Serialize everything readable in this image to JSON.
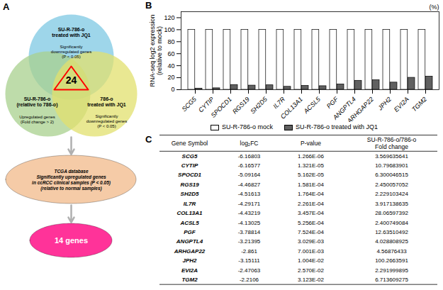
{
  "chart_data": [
    {
      "type": "venn",
      "title": "A",
      "sets": [
        {
          "name": "SU-R-786-o\ntreated with JQ1",
          "label": "Significantly\ndownregulated genes\n(P < 0.05)",
          "color": "#7ec8e3"
        },
        {
          "name": "SU-R-786-o\n(relative to 786-o)",
          "label": "Upregulated genes\n(Fold change > 2)",
          "color": "#a8d08d"
        },
        {
          "name": "786-o\ntreated with JQ1",
          "label": "Significantly\ndownregulated genes\n(P < 0.05)",
          "color": "#e2e06e"
        }
      ],
      "intersection": 24,
      "annotations": [
        {
          "text": "TCGA database\nSignificantly upregulated genes\nin ccRCC clinical samples (P < 0.05)\n(relative to normal samples)",
          "color": "#f5cba7"
        },
        {
          "text": "14 genes",
          "color": "#ff3399"
        }
      ]
    },
    {
      "type": "bar",
      "title": "B",
      "categories": [
        "SCG5",
        "CYTIP",
        "SPOCD1",
        "RGS19",
        "SH2D5",
        "IL7R",
        "COL13A1",
        "ACSL5",
        "PGF",
        "ANGPTL4",
        "ARHGAP22",
        "JPH2",
        "EVI2A",
        "TGM2"
      ],
      "series": [
        {
          "name": "SU-R-786-o mock",
          "color": "#ffffff",
          "values": [
            100,
            100,
            100,
            100,
            100,
            100,
            100,
            100,
            100,
            100,
            100,
            100,
            100,
            100
          ]
        },
        {
          "name": "SU-R-786-o treated with JQ1",
          "color": "#606060",
          "values": [
            2.0,
            2.5,
            8.0,
            7.0,
            7.5,
            5.0,
            6.5,
            6.0,
            9.0,
            15.0,
            16.0,
            12.0,
            20.0,
            22.0
          ]
        }
      ],
      "ylabel": "RNA-seq log2 expression\n(relative to mock)",
      "annotations": [
        "(%)"
      ],
      "ylim": [
        0,
        130
      ],
      "yticks": [
        0,
        20,
        40,
        60,
        80,
        100,
        120
      ],
      "grid": false,
      "legend": "bottom"
    },
    {
      "type": "table",
      "title": "C",
      "columns": [
        "Gene Symbol",
        "log₂FC",
        "P-value",
        "SU-R-786-o/786-o\nFold change"
      ],
      "rows": [
        [
          "SCG5",
          "-6.16803",
          "1.266E-06",
          "3.569635641"
        ],
        [
          "CYTIP",
          "-6.16577",
          "1.321E-05",
          "10.79683901"
        ],
        [
          "SPOCD1",
          "-5.09164",
          "5.162E-05",
          "6.300046515"
        ],
        [
          "RGS19",
          "-4.46827",
          "1.581E-04",
          "2.450057052"
        ],
        [
          "SH2D5",
          "-4.51613",
          "1.764E-04",
          "2.229103424"
        ],
        [
          "IL7R",
          "-4.29171",
          "2.261E-04",
          "3.917138635"
        ],
        [
          "COL13A1",
          "-4.43219",
          "3.457E-04",
          "28.06597392"
        ],
        [
          "ACSL5",
          "-4.13025",
          "5.256E-04",
          "2.400749084"
        ],
        [
          "PGF",
          "-3.78814",
          "7.524E-04",
          "12.63510492"
        ],
        [
          "ANGPTL4",
          "-3.21395",
          "3.029E-03",
          "4.028808925"
        ],
        [
          "ARHGAP22",
          "-2.861",
          "7.001E-03",
          "4.56876433"
        ],
        [
          "JPH2",
          "-3.15111",
          "1.004E-02",
          "100.2663591"
        ],
        [
          "EVI2A",
          "-2.47063",
          "2.570E-02",
          "2.291999895"
        ],
        [
          "TGM2",
          "-2.2106",
          "3.123E-02",
          "6.713609275"
        ]
      ]
    }
  ]
}
